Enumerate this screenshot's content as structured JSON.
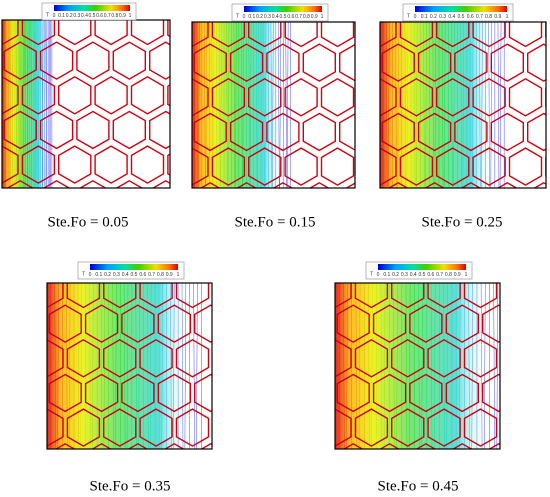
{
  "panels": [
    {
      "caption": "Ste.Fo = 0.05",
      "colorbar": {
        "label": "T",
        "ticks": [
          "0",
          "0.1",
          "0.2",
          "0.3",
          "0.4",
          "0.5",
          "0.6",
          "0.7",
          "0.8",
          "0.9",
          "1"
        ]
      }
    },
    {
      "caption": "Ste.Fo = 0.15",
      "colorbar": {
        "label": "T",
        "ticks": [
          "0",
          "0.1",
          "0.2",
          "0.3",
          "0.4",
          "0.5",
          "0.6",
          "0.7",
          "0.8",
          "0.9",
          "1"
        ]
      }
    },
    {
      "caption": "Ste.Fo = 0.25",
      "colorbar": {
        "label": "T",
        "ticks": [
          "0",
          "0.1",
          "0.2",
          "0.3",
          "0.4",
          "0.5",
          "0.6",
          "0.7",
          "0.8",
          "0.9",
          "1"
        ]
      }
    },
    {
      "caption": "Ste.Fo = 0.35",
      "colorbar": {
        "label": "T",
        "ticks": [
          "0",
          "0.1",
          "0.2",
          "0.3",
          "0.4",
          "0.5",
          "0.6",
          "0.7",
          "0.8",
          "0.9",
          "1"
        ]
      }
    },
    {
      "caption": "Ste.Fo = 0.45",
      "colorbar": {
        "label": "T",
        "ticks": [
          "0",
          "0.1",
          "0.2",
          "0.3",
          "0.4",
          "0.5",
          "0.6",
          "0.7",
          "0.8",
          "0.9",
          "1"
        ]
      }
    }
  ]
}
